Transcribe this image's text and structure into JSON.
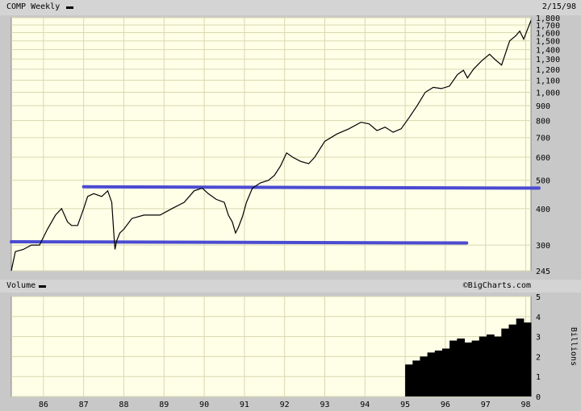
{
  "header": {
    "symbol": "COMP Weekly",
    "date": "2/15/98"
  },
  "volume_header": {
    "label": "Volume",
    "brand": "©BigCharts.com"
  },
  "volume_unit": "Billions",
  "colors": {
    "panel_bg": "#ffffe8",
    "grid": "#d8d8b0",
    "price_line": "#000000",
    "trendline": "#4b4bd2",
    "volume_bar": "#000000",
    "chrome": "#c8c8c8"
  },
  "chart_data": [
    {
      "type": "line",
      "title": "COMP Weekly",
      "scale": "log",
      "ylim": [
        245,
        1800
      ],
      "xlim": [
        1985.2,
        1998.13
      ],
      "x_tick_labels": [
        "86",
        "87",
        "88",
        "89",
        "90",
        "91",
        "92",
        "93",
        "94",
        "95",
        "96",
        "97",
        "98"
      ],
      "x_ticks": [
        1986,
        1987,
        1988,
        1989,
        1990,
        1991,
        1992,
        1993,
        1994,
        1995,
        1996,
        1997,
        1998
      ],
      "y_ticks": [
        245,
        300,
        400,
        500,
        600,
        700,
        800,
        900,
        1000,
        1100,
        1200,
        1300,
        1400,
        1500,
        1600,
        1700,
        1800
      ],
      "y_tick_labels": [
        "245",
        "300",
        "400",
        "500",
        "600",
        "700",
        "800",
        "900",
        "1,000",
        "1,100",
        "1,200",
        "1,300",
        "1,400",
        "1,500",
        "1,600",
        "1,700",
        "1,800"
      ],
      "grid": true,
      "series": [
        {
          "x": [
            1985.2,
            1985.3,
            1985.5,
            1985.7,
            1985.9,
            1986.1,
            1986.3,
            1986.45,
            1986.6,
            1986.7,
            1986.85,
            1987.0,
            1987.1,
            1987.25,
            1987.45,
            1987.6,
            1987.7,
            1987.75,
            1987.78,
            1987.82,
            1987.9,
            1988.0,
            1988.2,
            1988.5,
            1988.9,
            1989.2,
            1989.5,
            1989.75,
            1989.95,
            1990.1,
            1990.3,
            1990.5,
            1990.6,
            1990.7,
            1990.78,
            1990.85,
            1990.95,
            1991.05,
            1991.2,
            1991.4,
            1991.6,
            1991.75,
            1991.9,
            1992.05,
            1992.2,
            1992.4,
            1992.6,
            1992.75,
            1993.0,
            1993.3,
            1993.6,
            1993.9,
            1994.1,
            1994.3,
            1994.5,
            1994.7,
            1994.9,
            1995.1,
            1995.3,
            1995.5,
            1995.7,
            1995.9,
            1996.1,
            1996.3,
            1996.45,
            1996.55,
            1996.7,
            1996.9,
            1997.1,
            1997.25,
            1997.4,
            1997.6,
            1997.75,
            1997.85,
            1997.95,
            1998.05,
            1998.13
          ],
          "y": [
            245,
            285,
            290,
            300,
            300,
            340,
            380,
            400,
            360,
            350,
            350,
            400,
            440,
            450,
            440,
            460,
            420,
            330,
            290,
            310,
            330,
            340,
            370,
            380,
            380,
            400,
            420,
            460,
            470,
            450,
            430,
            420,
            380,
            360,
            330,
            345,
            375,
            420,
            470,
            490,
            500,
            520,
            560,
            620,
            600,
            580,
            570,
            600,
            680,
            720,
            750,
            790,
            780,
            740,
            760,
            730,
            750,
            820,
            900,
            1000,
            1040,
            1030,
            1050,
            1150,
            1190,
            1120,
            1200,
            1280,
            1350,
            1290,
            1240,
            1500,
            1560,
            1620,
            1520,
            1650,
            1760
          ]
        }
      ],
      "trendlines": [
        {
          "label": "upper",
          "x": [
            1987.0,
            1998.33
          ],
          "y": [
            475,
            470
          ]
        },
        {
          "label": "lower",
          "x": [
            1985.2,
            1996.53
          ],
          "y": [
            308,
            305
          ]
        }
      ]
    },
    {
      "type": "bar",
      "title": "Volume",
      "ylabel": "Billions",
      "ylim": [
        0,
        5
      ],
      "y_ticks": [
        0,
        1,
        2,
        3,
        4,
        5
      ],
      "xlim": [
        1985.2,
        1998.13
      ],
      "x_tick_labels": [
        "86",
        "87",
        "88",
        "89",
        "90",
        "91",
        "92",
        "93",
        "94",
        "95",
        "96",
        "97",
        "98"
      ],
      "x": [
        1995.0,
        1995.2,
        1995.4,
        1995.6,
        1995.8,
        1996.0,
        1996.2,
        1996.4,
        1996.6,
        1996.8,
        1997.0,
        1997.2,
        1997.4,
        1997.6,
        1997.8,
        1998.0,
        1998.1
      ],
      "values": [
        1.6,
        1.8,
        2.0,
        2.2,
        2.3,
        2.4,
        2.8,
        2.9,
        2.7,
        2.8,
        3.0,
        3.1,
        3.0,
        3.4,
        3.6,
        3.9,
        3.7
      ]
    }
  ]
}
